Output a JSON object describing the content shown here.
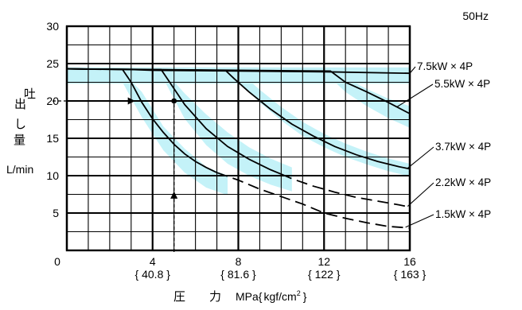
{
  "chart_data": {
    "type": "line",
    "frequency_note": "50Hz",
    "xlabel": {
      "kanji": [
        "圧",
        "力"
      ],
      "unit_main": "MPa",
      "unit_bracket_open": "{",
      "unit_sub": "kgf/cm",
      "unit_sup": "2",
      "unit_bracket_close": "}"
    },
    "ylabel": {
      "chars": [
        "吐",
        "出",
        "し",
        "量"
      ],
      "unit": "L/min"
    },
    "xlim": [
      0,
      16
    ],
    "ylim": [
      0,
      30
    ],
    "x_major_ticks": [
      {
        "value": 0,
        "label": "0",
        "sub": ""
      },
      {
        "value": 4,
        "label": "4",
        "sub": "{ 40.8 }"
      },
      {
        "value": 8,
        "label": "8",
        "sub": "{ 81.6 }"
      },
      {
        "value": 12,
        "label": "12",
        "sub": "{ 122 }"
      },
      {
        "value": 16,
        "label": "16",
        "sub": "{ 163 }"
      }
    ],
    "y_major_ticks": [
      {
        "value": 5,
        "label": "5"
      },
      {
        "value": 10,
        "label": "10"
      },
      {
        "value": 15,
        "label": "15"
      },
      {
        "value": 20,
        "label": "20"
      },
      {
        "value": 25,
        "label": "25"
      },
      {
        "value": 30,
        "label": "30"
      }
    ],
    "grid": true,
    "series": [
      {
        "name": "7.5kW × 4P",
        "points": [
          [
            0,
            24.3
          ],
          [
            3,
            24.2
          ],
          [
            4,
            24.1
          ],
          [
            8,
            24.0
          ],
          [
            12,
            23.9
          ],
          [
            16,
            23.7
          ]
        ],
        "dashed_from": null
      },
      {
        "name": "5.5kW × 4P",
        "points": [
          [
            0,
            24.3
          ],
          [
            12.3,
            24.0
          ],
          [
            13.0,
            22.5
          ],
          [
            14.0,
            21.2
          ],
          [
            15.0,
            19.8
          ],
          [
            16.0,
            18.3
          ]
        ],
        "dashed_from": null
      },
      {
        "name": "3.7kW × 4P",
        "points": [
          [
            0,
            24.3
          ],
          [
            7.4,
            24.1
          ],
          [
            7.8,
            23.0
          ],
          [
            8.5,
            21.2
          ],
          [
            9.5,
            18.9
          ],
          [
            10.5,
            16.9
          ],
          [
            11.5,
            15.3
          ],
          [
            12.5,
            13.9
          ],
          [
            13.5,
            12.8
          ],
          [
            14.5,
            11.9
          ],
          [
            15.5,
            11.2
          ],
          [
            16.0,
            10.9
          ]
        ],
        "dashed_from": null
      },
      {
        "name": "2.2kW × 4P",
        "points": [
          [
            0,
            24.3
          ],
          [
            4.4,
            24.2
          ],
          [
            4.8,
            22.5
          ],
          [
            5.5,
            19.5
          ],
          [
            6.5,
            16.3
          ],
          [
            7.5,
            13.9
          ],
          [
            8.5,
            12.2
          ],
          [
            9.5,
            10.8
          ],
          [
            10.5,
            9.6
          ],
          [
            11.5,
            8.6
          ],
          [
            12.5,
            7.8
          ],
          [
            13.5,
            7.1
          ],
          [
            14.5,
            6.6
          ],
          [
            15.5,
            6.1
          ],
          [
            16.0,
            5.8
          ]
        ],
        "dashed_from": 10.0
      },
      {
        "name": "1.5kW × 4P",
        "points": [
          [
            0,
            24.3
          ],
          [
            2.6,
            24.2
          ],
          [
            3.0,
            22.5
          ],
          [
            3.5,
            19.8
          ],
          [
            4.0,
            17.6
          ],
          [
            4.5,
            15.8
          ],
          [
            5.0,
            14.2
          ],
          [
            5.5,
            12.9
          ],
          [
            6.0,
            11.9
          ],
          [
            6.5,
            11.1
          ],
          [
            7.0,
            10.4
          ],
          [
            8.0,
            9.4
          ],
          [
            9.0,
            8.2
          ],
          [
            10.0,
            7.2
          ],
          [
            11.0,
            6.2
          ],
          [
            12.0,
            5.0
          ],
          [
            13.0,
            4.3
          ],
          [
            14.0,
            3.7
          ],
          [
            15.0,
            3.2
          ],
          [
            16.0,
            3.0
          ]
        ],
        "dashed_from": 7.0
      }
    ],
    "bands": [
      {
        "x": [
          0,
          16
        ],
        "lower": [
          22.3,
          22.3
        ],
        "upper": [
          24.5,
          24.5
        ]
      },
      {
        "x": [
          2.5,
          3.5,
          4.5,
          5.5,
          6.5,
          7.5
        ],
        "lower": [
          23.0,
          17.8,
          13.4,
          10.4,
          8.4,
          7.4
        ],
        "upper": [
          24.2,
          21.2,
          16.6,
          13.6,
          11.2,
          10.0
        ]
      },
      {
        "x": [
          4.5,
          5.5,
          6.5,
          7.5,
          8.5,
          9.5,
          10.5
        ],
        "lower": [
          23.0,
          17.6,
          14.1,
          11.6,
          10.0,
          8.8,
          7.9
        ],
        "upper": [
          24.2,
          21.0,
          18.2,
          15.8,
          13.8,
          12.3,
          11.1
        ]
      },
      {
        "x": [
          8.0,
          9.0,
          10.0,
          11.0,
          12.0,
          13.0,
          14.0,
          15.0,
          16.0
        ],
        "lower": [
          22.7,
          19.8,
          17.4,
          15.3,
          13.8,
          12.5,
          11.5,
          10.6,
          9.9
        ],
        "upper": [
          24.0,
          21.5,
          19.2,
          17.2,
          15.6,
          14.3,
          13.2,
          12.3,
          11.6
        ]
      },
      {
        "x": [
          12.3,
          13.0,
          14.0,
          15.0,
          16.0
        ],
        "lower": [
          23.1,
          21.2,
          19.3,
          17.7,
          16.4
        ],
        "upper": [
          24.0,
          23.1,
          21.6,
          20.3,
          19.3
        ]
      }
    ],
    "operating_point": {
      "x": 5,
      "y": 20
    }
  }
}
